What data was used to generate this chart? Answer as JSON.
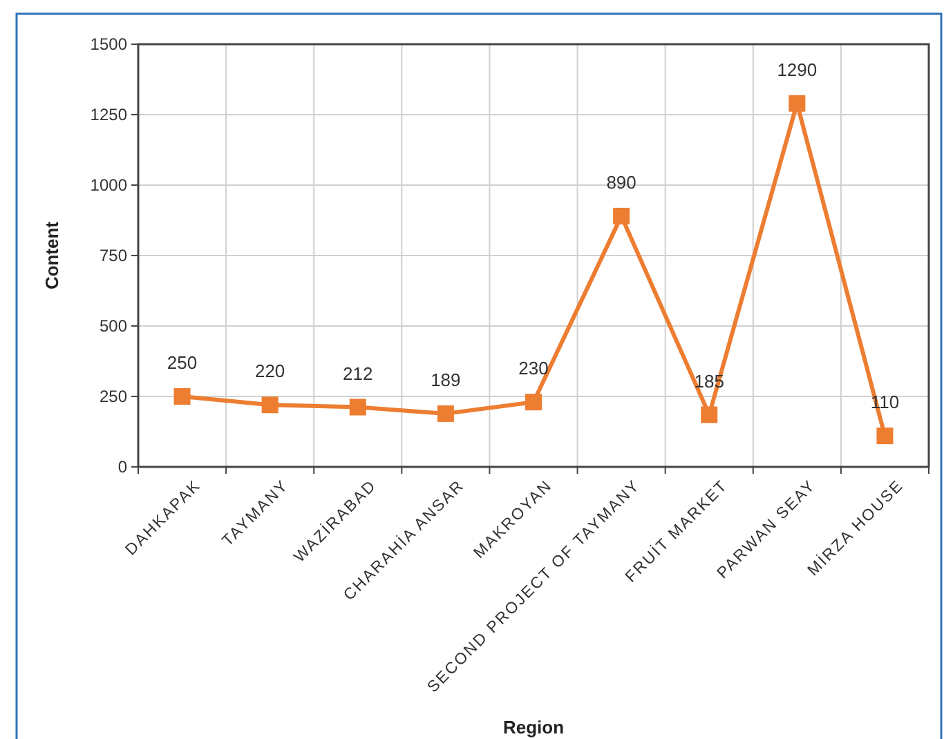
{
  "chart_data": {
    "type": "line",
    "xlabel": "Region",
    "ylabel": "Content",
    "categories": [
      "DAHKAPAK",
      "TAYMANY",
      "WAZİRABAD",
      "CHARAHİA ANSAR",
      "MAKROYAN",
      "SECOND PROJECT OF TAYMANY",
      "FRUİT MARKET",
      "PARWAN SEAY",
      "MİRZA HOUSE"
    ],
    "series": [
      {
        "color": "#ed7d31",
        "values": [
          250,
          220,
          212,
          189,
          230,
          890,
          185,
          1290,
          110
        ]
      }
    ],
    "ylim": [
      0,
      1500
    ],
    "yticks": [
      0,
      250,
      500,
      750,
      1000,
      1250,
      1500
    ],
    "grid": true,
    "marker": "square",
    "line_style": "solid",
    "data_labels": true
  }
}
